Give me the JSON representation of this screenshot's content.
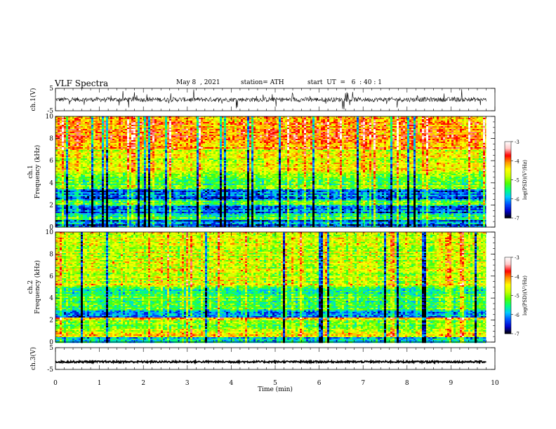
{
  "header": {
    "title": "VLF Spectra",
    "date": "May 8  , 2021",
    "station": "station= ATH",
    "start": "start  UT  =   6  : 40 : 1"
  },
  "chart_data": [
    {
      "type": "line",
      "name": "ch1-waveform",
      "ylabel": "ch.1(V)",
      "xlim": [
        0,
        10
      ],
      "ylim": [
        -5,
        5
      ],
      "yticks": [
        "5",
        "-5"
      ],
      "x_end": 9.8,
      "baseline": 0,
      "noise_amplitude": 1.0,
      "spike_amplitude": 2.5
    },
    {
      "type": "heatmap",
      "name": "ch1-spectrogram",
      "ylabel_channel": "ch.1",
      "ylabel": "Frequency  (kHz)",
      "xlim": [
        0,
        10
      ],
      "ylim": [
        0,
        10
      ],
      "yticks": [
        "0",
        "2",
        "4",
        "6",
        "8",
        "10"
      ],
      "x_end": 9.8,
      "bands": [
        {
          "from": 0,
          "to": 0.6,
          "level": -6.3
        },
        {
          "from": 0.6,
          "to": 1.1,
          "level": -5.3
        },
        {
          "from": 1.1,
          "to": 2.0,
          "level": -6.1
        },
        {
          "from": 2.0,
          "to": 2.4,
          "level": -5.2
        },
        {
          "from": 2.4,
          "to": 3.4,
          "level": -6.2
        },
        {
          "from": 3.4,
          "to": 5.0,
          "level": -5.2
        },
        {
          "from": 5.0,
          "to": 7.0,
          "level": -4.7
        },
        {
          "from": 7.0,
          "to": 10.0,
          "level": -4.1
        }
      ]
    },
    {
      "type": "heatmap",
      "name": "ch2-spectrogram",
      "ylabel_channel": "ch.2",
      "ylabel": "Frequency  (kHz)",
      "xlim": [
        0,
        10
      ],
      "ylim": [
        0,
        10
      ],
      "yticks": [
        "0",
        "2",
        "4",
        "6",
        "8",
        "10"
      ],
      "x_end": 9.8,
      "bands": [
        {
          "from": 0,
          "to": 0.5,
          "level": -6.0
        },
        {
          "from": 0.5,
          "to": 1.2,
          "level": -4.6
        },
        {
          "from": 1.2,
          "to": 2.0,
          "level": -5.0
        },
        {
          "from": 2.0,
          "to": 2.2,
          "level": -4.3
        },
        {
          "from": 2.2,
          "to": 2.9,
          "level": -6.1
        },
        {
          "from": 2.9,
          "to": 4.2,
          "level": -5.2
        },
        {
          "from": 4.2,
          "to": 5.0,
          "level": -5.6
        },
        {
          "from": 5.0,
          "to": 10.0,
          "level": -4.7
        }
      ]
    },
    {
      "type": "line",
      "name": "ch3-waveform",
      "ylabel": "ch.3(V)",
      "xlim": [
        0,
        10
      ],
      "ylim": [
        -5,
        5
      ],
      "yticks": [
        "5",
        "-5"
      ],
      "x_end": 9.8,
      "baseline": -1.5,
      "noise_amplitude": 0.4,
      "spike_amplitude": 0
    }
  ],
  "xaxis": {
    "label": "Time  (min)",
    "ticks": [
      "0",
      "1",
      "2",
      "3",
      "4",
      "5",
      "6",
      "7",
      "8",
      "9",
      "10"
    ]
  },
  "colorbar": {
    "label": "log(PSD)(V²/Hz)",
    "ticks": [
      "-3",
      "-4",
      "-5",
      "-6",
      "-7"
    ],
    "range": [
      -7,
      -3
    ],
    "stops": [
      "#000000",
      "#0000c8",
      "#0050ff",
      "#00c8ff",
      "#00ff80",
      "#50ff00",
      "#c8ff00",
      "#ffff00",
      "#ff9600",
      "#ff0000",
      "#ffc8c8",
      "#ffffff"
    ]
  }
}
